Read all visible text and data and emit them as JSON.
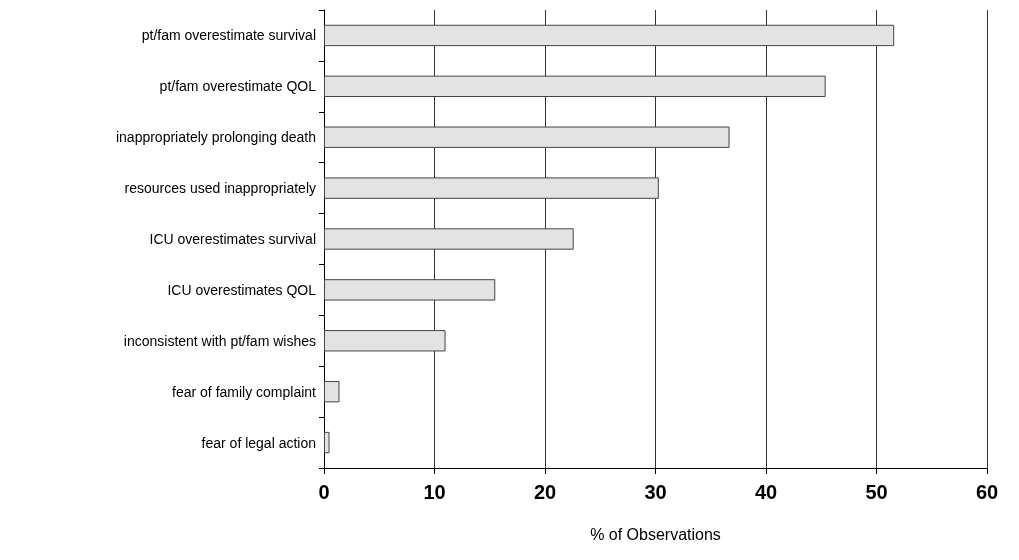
{
  "chart_data": {
    "type": "bar",
    "orientation": "horizontal",
    "xlabel": "% of Observations",
    "categories": [
      "pt/fam overestimate survival",
      "pt/fam overestimate QOL",
      "inappropriately prolonging death",
      "resources used inappropriately",
      "ICU overestimates survival",
      "ICU overestimates QOL",
      "inconsistent with pt/fam wishes",
      "fear of family complaint",
      "fear of legal action"
    ],
    "values": [
      51.6,
      45.4,
      36.7,
      30.3,
      22.6,
      15.5,
      11.0,
      1.4,
      0.5
    ],
    "color": "#e3e3e3",
    "xlim": [
      0,
      60
    ],
    "xticks": [
      0,
      10,
      20,
      30,
      40,
      50,
      60
    ],
    "grid": "x"
  }
}
